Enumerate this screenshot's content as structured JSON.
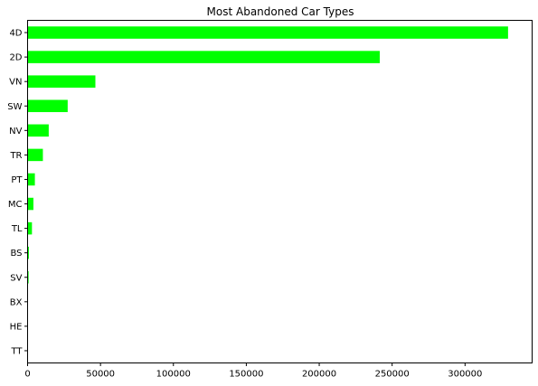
{
  "chart_data": {
    "type": "bar",
    "orientation": "horizontal",
    "title": "Most Abandoned Car Types",
    "xlabel": "",
    "ylabel": "",
    "categories": [
      "4D",
      "2D",
      "VN",
      "SW",
      "NV",
      "TR",
      "PT",
      "MC",
      "TL",
      "BS",
      "SV",
      "BX",
      "HE",
      "TT"
    ],
    "values": [
      329500,
      241500,
      46500,
      27500,
      14500,
      10500,
      5000,
      4000,
      3000,
      900,
      700,
      150,
      100,
      50
    ],
    "xlim": [
      0,
      346000
    ],
    "xticks": [
      0,
      50000,
      100000,
      150000,
      200000,
      250000,
      300000
    ],
    "grid": false,
    "bar_color": "#00ff00"
  }
}
